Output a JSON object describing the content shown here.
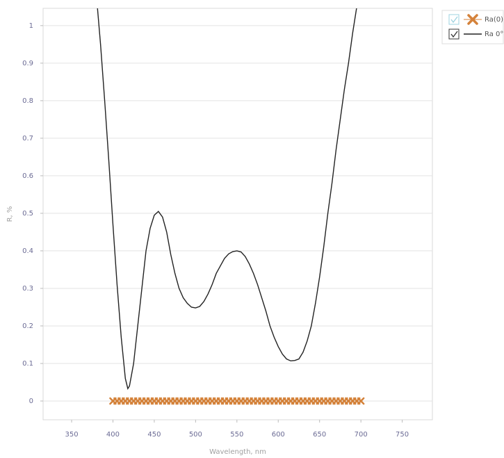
{
  "chart_data": {
    "type": "line",
    "xlabel": "Wavelength, nm",
    "ylabel": "R, %",
    "xlim": [
      315.5,
      786.5
    ],
    "ylim": [
      -0.05,
      1.046
    ],
    "xticks": [
      350,
      400,
      450,
      500,
      550,
      600,
      650,
      700,
      750
    ],
    "yticks": [
      0,
      0.1,
      0.2,
      0.3,
      0.4,
      0.5,
      0.6,
      0.7,
      0.8,
      0.9,
      1
    ],
    "grid": true,
    "legend": "outside-right",
    "series": [
      {
        "name": "Ra(0)",
        "type": "scatter",
        "color": "#d4823a",
        "x": [
          400,
          405,
          410,
          415,
          420,
          425,
          430,
          435,
          440,
          445,
          450,
          455,
          460,
          465,
          470,
          475,
          480,
          485,
          490,
          495,
          500,
          505,
          510,
          515,
          520,
          525,
          530,
          535,
          540,
          545,
          550,
          555,
          560,
          565,
          570,
          575,
          580,
          585,
          590,
          595,
          600,
          605,
          610,
          615,
          620,
          625,
          630,
          635,
          640,
          645,
          650,
          655,
          660,
          665,
          670,
          675,
          680,
          685,
          690,
          695,
          700
        ],
        "values": [
          0,
          0,
          0,
          0,
          0,
          0,
          0,
          0,
          0,
          0,
          0,
          0,
          0,
          0,
          0,
          0,
          0,
          0,
          0,
          0,
          0,
          0,
          0,
          0,
          0,
          0,
          0,
          0,
          0,
          0,
          0,
          0,
          0,
          0,
          0,
          0,
          0,
          0,
          0,
          0,
          0,
          0,
          0,
          0,
          0,
          0,
          0,
          0,
          0,
          0,
          0,
          0,
          0,
          0,
          0,
          0,
          0,
          0,
          0,
          0,
          0
        ]
      },
      {
        "name": "Ra 0°",
        "type": "line",
        "color": "#222222",
        "x": [
          380,
          385,
          390,
          395,
          400,
          405,
          410,
          415,
          418,
          420,
          425,
          430,
          435,
          440,
          445,
          450,
          455,
          460,
          465,
          470,
          475,
          480,
          485,
          490,
          495,
          500,
          505,
          510,
          515,
          520,
          525,
          530,
          535,
          540,
          545,
          550,
          555,
          560,
          565,
          570,
          575,
          580,
          585,
          590,
          595,
          600,
          605,
          610,
          615,
          620,
          625,
          630,
          635,
          640,
          645,
          650,
          655,
          660,
          665,
          670,
          675,
          680,
          685,
          690,
          695,
          700
        ],
        "values": [
          1.08,
          0.95,
          0.8,
          0.64,
          0.47,
          0.31,
          0.17,
          0.06,
          0.033,
          0.04,
          0.1,
          0.2,
          0.3,
          0.4,
          0.46,
          0.495,
          0.505,
          0.49,
          0.45,
          0.39,
          0.34,
          0.3,
          0.275,
          0.26,
          0.25,
          0.248,
          0.252,
          0.265,
          0.285,
          0.31,
          0.34,
          0.36,
          0.38,
          0.392,
          0.398,
          0.4,
          0.397,
          0.385,
          0.365,
          0.34,
          0.31,
          0.275,
          0.24,
          0.2,
          0.17,
          0.145,
          0.125,
          0.112,
          0.107,
          0.108,
          0.112,
          0.13,
          0.16,
          0.2,
          0.26,
          0.33,
          0.41,
          0.5,
          0.58,
          0.67,
          0.75,
          0.83,
          0.9,
          0.98,
          1.05,
          1.12
        ]
      }
    ]
  }
}
